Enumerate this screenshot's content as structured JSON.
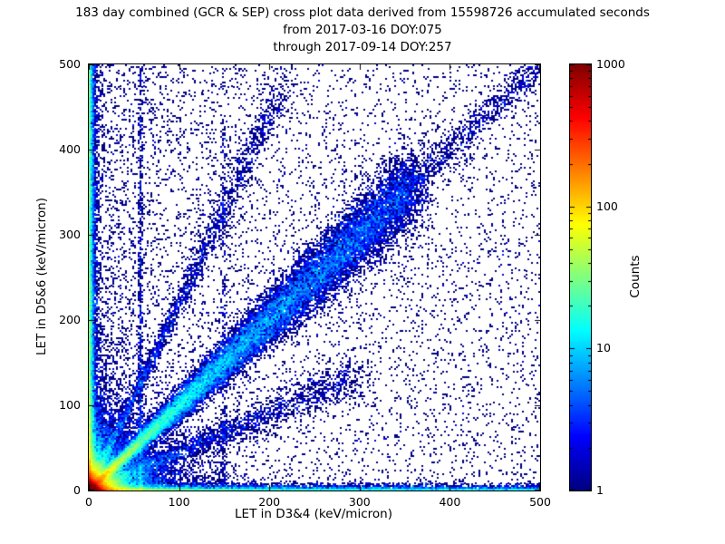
{
  "title": {
    "line1": "183 day combined (GCR & SEP) cross plot data derived from 15598726 accumulated seconds",
    "line2": "from 2017-03-16 DOY:075",
    "line3": "through 2017-09-14 DOY:257"
  },
  "chart_data": {
    "type": "heatmap",
    "subtype": "2d-histogram scatter cross plot",
    "xlabel": "LET in D3&4 (keV/micron)",
    "ylabel": "LET in D5&6 (keV/micron)",
    "xlim": [
      0,
      500
    ],
    "ylim": [
      0,
      500
    ],
    "x_ticks": [
      0,
      100,
      200,
      300,
      400,
      500
    ],
    "y_ticks": [
      0,
      100,
      200,
      300,
      400,
      500
    ],
    "grid": false,
    "frame_color": "#000000",
    "background_color": "#ffffff",
    "colorbar": {
      "label": "Counts",
      "scale": "log",
      "min": 1,
      "max": 1000,
      "ticks": [
        1,
        10,
        100,
        1000
      ],
      "colormap": "jet",
      "color_at_1": "#000080",
      "color_at_10": "#00d4ff",
      "color_at_100": "#ffd400",
      "color_at_1000": "#800000"
    },
    "bin_size_kev_per_micron": 2,
    "features": [
      {
        "name": "origin-hotspot",
        "desc": "very dense red/orange core at (0,0), peak counts ~1000+",
        "kind": "exp2d",
        "n": 50000,
        "sx": 3,
        "sy": 3
      },
      {
        "name": "origin-glow",
        "desc": "yellow/green/cyan halo around origin out to ~30 keV/micron",
        "kind": "exp2d",
        "n": 25000,
        "sx": 11,
        "sy": 11
      },
      {
        "name": "origin-fan",
        "desc": "blue cloud radiating from origin out to ~120 keV/micron",
        "kind": "exp2d",
        "n": 10000,
        "sx": 32,
        "sy": 32
      },
      {
        "name": "main-diagonal",
        "desc": "dense coincidence band along y=x from origin to ~360, spread grows with LET",
        "kind": "diag",
        "n": 30000,
        "slope": 1,
        "tmin": 0,
        "tmax": 360,
        "tpow": 1.6,
        "spread0": 2,
        "spreadk": 0.06
      },
      {
        "name": "diagonal-tail",
        "desc": "sparse continuation of y=x band from 340 to 500",
        "kind": "diag",
        "n": 900,
        "slope": 1,
        "tmin": 340,
        "tmax": 500,
        "tpow": 1,
        "spread0": 10,
        "spreadk": 0
      },
      {
        "name": "left-edge-band",
        "desc": "dense cyan/blue column hugging the y-axis over full height",
        "kind": "bandv",
        "n": 15000,
        "xscale": 2.2,
        "ypow": 1.5
      },
      {
        "name": "bottom-edge-band",
        "desc": "dense thin strip hugging the x-axis out to 500",
        "kind": "bandh",
        "n": 9000,
        "yscale": 2,
        "xpow": 2
      },
      {
        "name": "ray-above-diagonal",
        "desc": "faint streak from origin at slope ~2.2",
        "kind": "diag",
        "n": 2500,
        "slope": 2.2,
        "tmin": 0,
        "tmax": 215,
        "tpow": 1.4,
        "spread0": 2,
        "spreadk": 0.05
      },
      {
        "name": "ray-below-diagonal",
        "desc": "faint streak from origin at slope ~0.45",
        "kind": "diag",
        "n": 2500,
        "slope": 0.45,
        "tmin": 0,
        "tmax": 300,
        "tpow": 1.4,
        "spread0": 2,
        "spreadk": 0.04
      },
      {
        "name": "vertical-stripe-57",
        "desc": "dotted vertical line near x=57 reaching high LET",
        "kind": "stripev",
        "n": 800,
        "x0": 57,
        "sigma": 1.2,
        "ymax": 500,
        "ypow": 1.8
      },
      {
        "name": "vertical-stripe-150",
        "desc": "very faint vertical alignment near x=150",
        "kind": "stripev",
        "n": 300,
        "x0": 150,
        "sigma": 1.5,
        "ymax": 440,
        "ypow": 1.5
      },
      {
        "name": "left-weighted-speckle",
        "desc": "sparse scatter denser toward low D3&4 LET",
        "kind": "powxy",
        "n": 4500,
        "xpow": 2.2,
        "ypow": 1
      },
      {
        "name": "uniform-background",
        "desc": "isolated single-count dots over the whole plane",
        "kind": "uniform",
        "n": 3000
      }
    ]
  }
}
